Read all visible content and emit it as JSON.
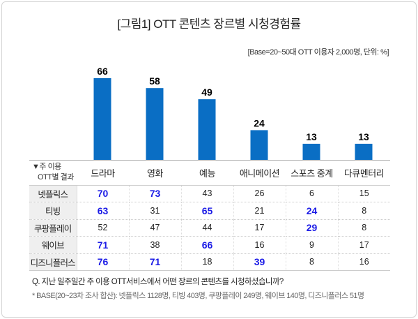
{
  "title": "[그림1] OTT 콘텐츠 장르별 시청경험률",
  "base_note": "[Base=20~50대 OTT 이용자 2,000명, 단위: %]",
  "chart_data": {
    "type": "bar",
    "title": "[그림1] OTT 콘텐츠 장르별 시청경험률",
    "categories": [
      "드라마",
      "영화",
      "예능",
      "애니메이션",
      "스포츠 중계",
      "다큐멘터리"
    ],
    "values": [
      66,
      58,
      49,
      24,
      13,
      13
    ],
    "ylim": [
      0,
      70
    ],
    "xlabel": "",
    "ylabel": "",
    "bar_color": "#0a6ec4"
  },
  "table": {
    "corner_line1": "▼주 이용",
    "corner_line2": "OTT별 결과",
    "rows": [
      {
        "label": "넷플릭스",
        "values": [
          "70",
          "73",
          "43",
          "26",
          "6",
          "15"
        ],
        "highlight": [
          true,
          true,
          false,
          false,
          false,
          false
        ]
      },
      {
        "label": "티빙",
        "values": [
          "63",
          "31",
          "65",
          "21",
          "24",
          "8"
        ],
        "highlight": [
          true,
          false,
          true,
          false,
          true,
          false
        ]
      },
      {
        "label": "쿠팡플레이",
        "values": [
          "52",
          "47",
          "44",
          "17",
          "29",
          "8"
        ],
        "highlight": [
          false,
          false,
          false,
          false,
          true,
          false
        ]
      },
      {
        "label": "웨이브",
        "values": [
          "71",
          "38",
          "66",
          "16",
          "9",
          "17"
        ],
        "highlight": [
          true,
          false,
          true,
          false,
          false,
          false
        ]
      },
      {
        "label": "디즈니플러스",
        "values": [
          "76",
          "71",
          "18",
          "39",
          "8",
          "16"
        ],
        "highlight": [
          true,
          true,
          false,
          true,
          false,
          false
        ]
      }
    ]
  },
  "question": "Q. 지난 일주일간 주 이용 OTT서비스에서 어떤 장르의 콘텐츠를 시청하셨습니까?",
  "footnote": "* BASE(20~23차 조사 합산): 넷플릭스 1128명, 티빙 403명, 쿠팡플레이 249명, 웨이브 140명, 디즈니플러스 51명"
}
